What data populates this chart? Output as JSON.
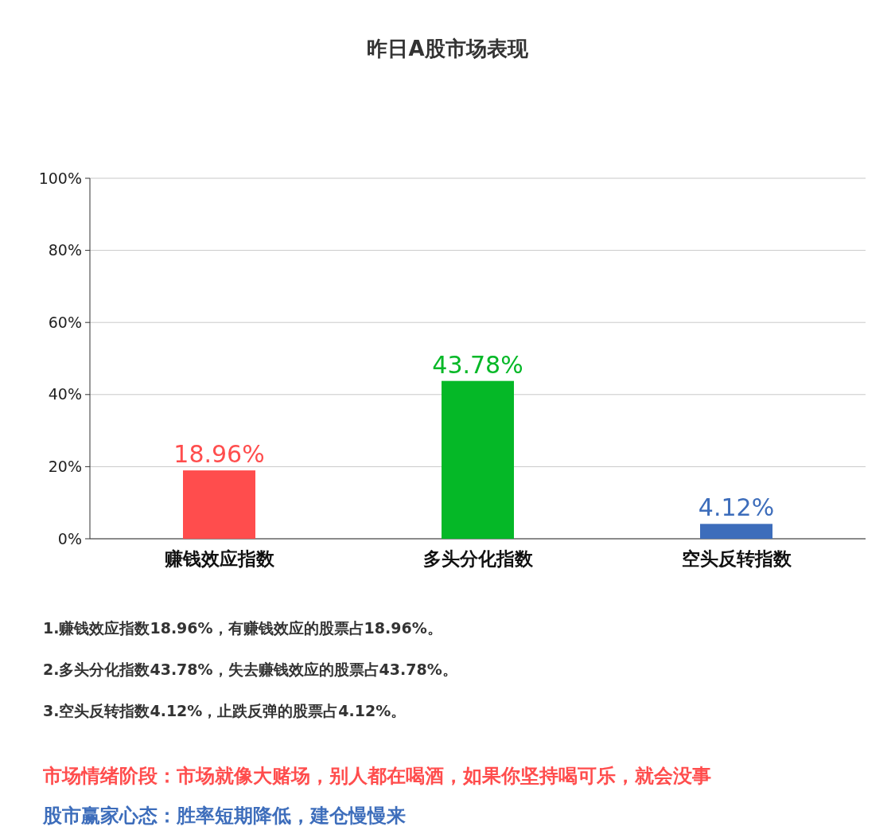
{
  "chart_data": {
    "type": "bar",
    "title": "昨日A股市场表现",
    "categories": [
      "赚钱效应指数",
      "多头分化指数",
      "空头反转指数"
    ],
    "values": [
      18.96,
      43.78,
      4.12
    ],
    "colors": [
      "#ff4d4d",
      "#05b827",
      "#3d6dbb"
    ],
    "value_labels": [
      "18.96%",
      "43.78%",
      "4.12%"
    ],
    "ylim": [
      0,
      100
    ],
    "yticks": [
      {
        "value": 0,
        "label": "0%"
      },
      {
        "value": 20,
        "label": "20%"
      },
      {
        "value": 40,
        "label": "40%"
      },
      {
        "value": 60,
        "label": "60%"
      },
      {
        "value": 80,
        "label": "80%"
      },
      {
        "value": 100,
        "label": "100%"
      }
    ],
    "grid": "y",
    "annotations": [
      "1.赚钱效应指数18.96%，有赚钱效应的股票占18.96%。",
      "2.多头分化指数43.78%，失去赚钱效应的股票占43.78%。",
      "3.空头反转指数4.12%，止跌反弹的股票占4.12%。",
      "市场情绪阶段：市场就像大赌场，别人都在喝酒，如果你坚持喝可乐，就会没事",
      "股市赢家心态：胜率短期降低，建仓慢慢来"
    ]
  }
}
